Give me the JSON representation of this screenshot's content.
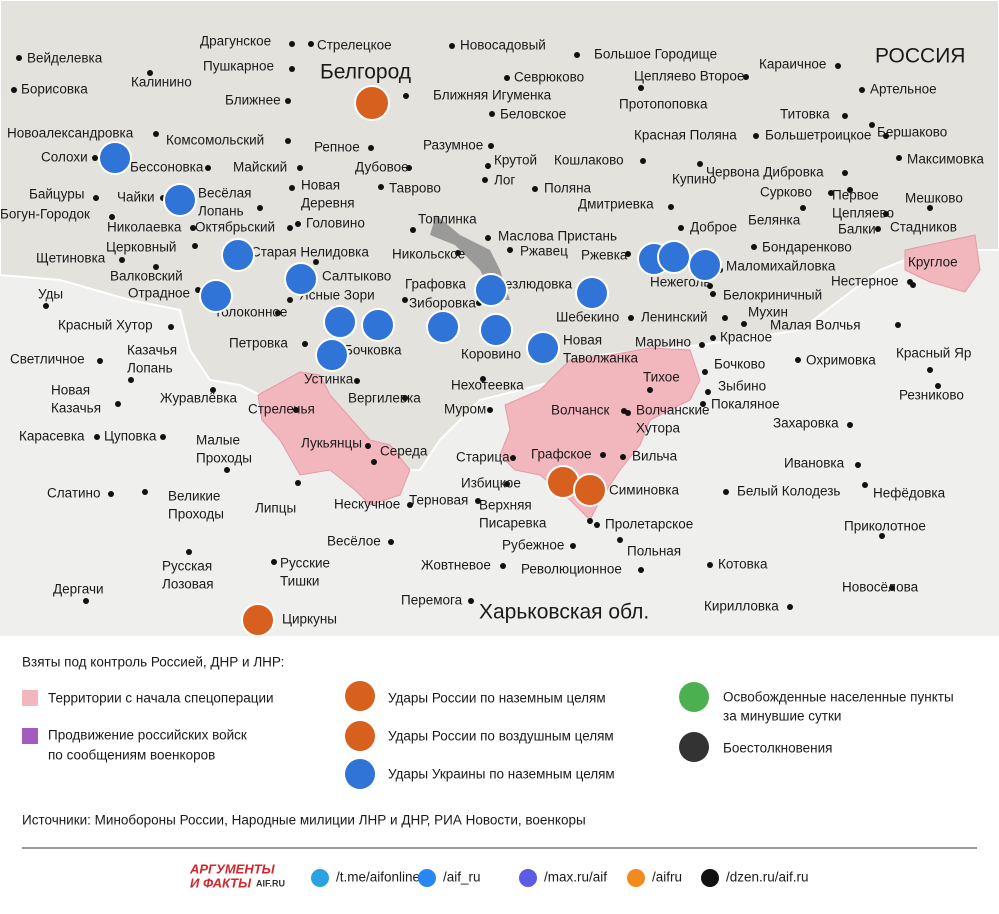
{
  "map": {
    "places": [
      "Драгунское",
      "Стрелецкое",
      "Новосадовый",
      "Большое Городище",
      "Караичное",
      "Вейделевка",
      "Пушкарное",
      "Севрюково",
      "Цепляево Второе",
      "Калинино",
      "Артельное",
      "Борисовка",
      "Ближняя Игуменка",
      "Ближнее",
      "Протопоповка",
      "Беловское",
      "Титовка",
      "Новоалександровка",
      "Комсомольский",
      "Красная Поляна",
      "Большетроицкое",
      "Бершаково",
      "Репное",
      "Разумное",
      "Солохи",
      "Майский",
      "Дубовое",
      "Крутой",
      "Кошлаково",
      "Максимовка",
      "Бессоновка",
      "Червона Дибровка",
      [
        "Байцуры"
      ],
      [
        "Новая",
        "Деревня"
      ],
      "Лог",
      "Купино",
      [
        "Весёлая",
        "Лопань"
      ],
      "Таврово",
      "Поляна",
      "Сурково",
      [
        "Первое",
        "Цепляево"
      ],
      "Мешково",
      "Богун-Городок",
      "Чайки",
      "Дмитриевка",
      "Балки",
      "Топлинка",
      "Октябрьский",
      "Головино",
      "Николаевка",
      "Доброе",
      "Белянка",
      "Стадников",
      "Маслова Пристань",
      "Церковный",
      "Старая Нелидовка",
      "Никольское",
      "Ржавец",
      "Бондаренково",
      "Щетиновка",
      "Ржевка",
      "Круглое",
      "Валковский",
      "Маломихайловка",
      "Салтыково",
      "Графовка",
      "Безлюдовка",
      "Нежеголь",
      "Нестерное",
      "Уды",
      "Отрадное",
      "Ясные Зори",
      "Белокриничный",
      "Зиборовка",
      "Толоконное",
      "Шебекино",
      "Ленинский",
      "Мухин",
      "Малая Волчья",
      "Красный Хутор",
      "Бочковка",
      "Коровино",
      [
        "Новая",
        "Таволжанка"
      ],
      "Марьино",
      "Красное",
      "Петровка",
      [
        "Казачья",
        "Лопань"
      ],
      "Светличное",
      "Бочково",
      "Охримовка",
      "Красный Яр",
      "Устинка",
      "Тихое",
      "Зыбино",
      "Нехотеевка",
      [
        "Новая",
        "Казачья"
      ],
      "Журавлёвка",
      "Вергилевка",
      "Покаляное",
      "Резниково",
      "Стрелечья",
      "Муром",
      "Волчанск",
      [
        "Волчанские",
        "Хутора"
      ],
      "Захаровка",
      "Карасевка",
      "Цуповка",
      [
        "Малые",
        "Проходы"
      ],
      "Лукьянцы",
      "Середа",
      "Старица",
      "Графское",
      "Вильча",
      "Ивановка",
      "Избицкое",
      "Симиновка",
      "Белый Колодезь",
      "Нефёдовка",
      "Слатино",
      [
        "Великие",
        "Проходы"
      ],
      "Нескучное",
      "Терновая",
      [
        "Верхняя",
        "Писаревка"
      ],
      "Липцы",
      "Пролетарское",
      "Приколотное",
      "Весёлое",
      "Рубежное",
      "Польная",
      [
        "Русская",
        "Лозовая"
      ],
      [
        "Русские",
        "Тишки"
      ],
      "Жовтневое",
      "Революционное",
      "Котовка",
      "Дергачи",
      "Новосёлова",
      "Перемога",
      "Кирилловка",
      "Циркуны"
    ],
    "regions": {
      "russia": "РОССИЯ",
      "belgorod": "Белгород",
      "kharkiv": "Харьковская обл."
    }
  },
  "legend": {
    "title": "Взяты под контроль Россией, ДНР и ЛНР:",
    "territory": "Территории с начала спецоперации",
    "advance": [
      "Продвижение российских войск",
      "по сообщениям военкоров"
    ],
    "ru_ground": "Удары России по наземным целям",
    "ru_air": "Удары России по воздушным целям",
    "ua_ground": "Удары Украины по наземным целям",
    "liberated": [
      "Освобожденные населенные пункты",
      "за минувшие сутки"
    ],
    "clashes": "Боестолкновения"
  },
  "sources": "Источники: Минобороны России, Народные милиции ЛНР и ДНР, РИА Новости, военкоры",
  "footer": {
    "logo": [
      "АРГУМЕНТЫ",
      "И ФАКТЫ",
      "AIF.RU"
    ],
    "links": [
      "/t.me/aifonline",
      "/aif_ru",
      "/max.ru/aif",
      "/aifru",
      "/dzen.ru/aif.ru"
    ]
  }
}
